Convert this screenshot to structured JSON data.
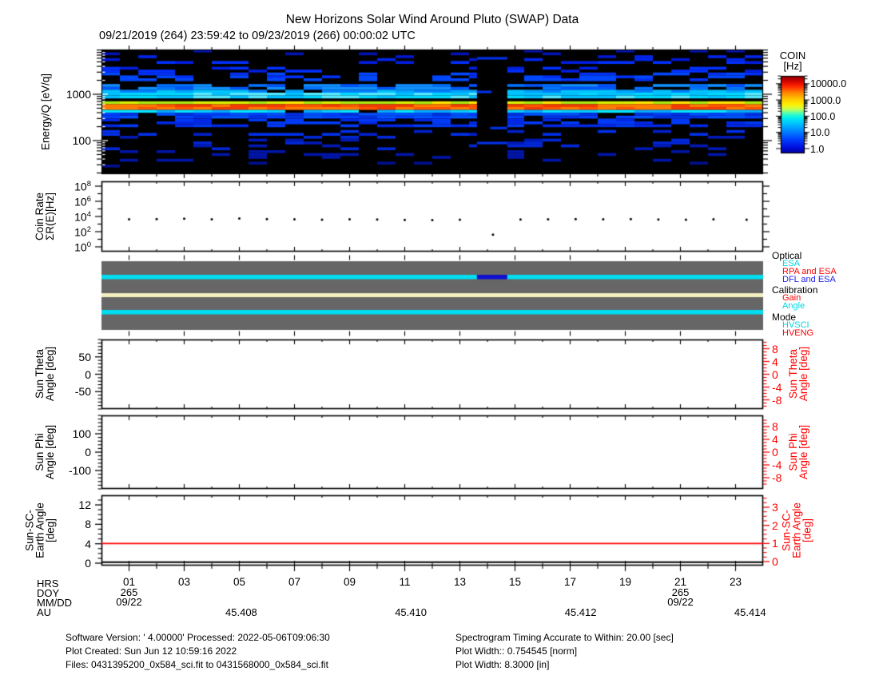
{
  "title": "New Horizons Solar Wind Around Pluto (SWAP) Data",
  "subtitle": "09/21/2019 (264) 23:59:42 to 09/23/2019 (266) 00:00:02 UTC",
  "colorbar": {
    "title_lines": [
      "COIN",
      "[Hz]"
    ],
    "tick_labels": [
      "10000.0",
      "1000.0",
      "100.0",
      "10.0",
      "1.0"
    ],
    "scale": "log"
  },
  "axes": {
    "energy": {
      "lines": [
        "Energy/Q [eV/q]"
      ],
      "ticks": [
        {
          "v": 1000,
          "label": "1000"
        },
        {
          "v": 100,
          "label": "100"
        }
      ]
    },
    "coin": {
      "lines": [
        "Coin Rate",
        "ΣR(E)[Hz]"
      ],
      "ticks": [
        {
          "exp": 8
        },
        {
          "exp": 6
        },
        {
          "exp": 4
        },
        {
          "exp": 2
        },
        {
          "exp": 0
        }
      ]
    },
    "theta_left": {
      "lines": [
        "Sun Theta",
        "Angle [deg]"
      ],
      "majors": [
        50,
        0,
        -50
      ],
      "minor_step": 10,
      "minor_range": [
        -100,
        100
      ]
    },
    "theta_right": {
      "lines": [
        "Sun Theta",
        "Angle [deg]"
      ],
      "majors": [
        8,
        4,
        0,
        -4,
        -8
      ],
      "minor_step": 1,
      "minor_range": [
        -10,
        10
      ],
      "color": "#ff0000"
    },
    "phi_left": {
      "lines": [
        "Sun Phi",
        "Angle [deg]"
      ],
      "majors": [
        100,
        0,
        -100
      ],
      "minor_step": 20,
      "minor_range": [
        -200,
        200
      ]
    },
    "phi_right": {
      "lines": [
        "Sun Phi",
        "Angle [deg]"
      ],
      "majors": [
        8,
        4,
        0,
        -4,
        -8
      ],
      "minor_step": 1,
      "minor_range": [
        -10,
        10
      ],
      "color": "#ff0000"
    },
    "earth_left": {
      "lines": [
        "Sun-SC-",
        "Earth Angle",
        "[deg]"
      ],
      "majors": [
        12,
        8,
        4,
        0
      ],
      "minor_step": 1,
      "minor_range": [
        0,
        13.5
      ]
    },
    "earth_right": {
      "lines": [
        "Sun-SC-",
        "Earth Angle",
        "[deg]"
      ],
      "majors": [
        3,
        2,
        1,
        0
      ],
      "minor_step": 0.25,
      "minor_range": [
        0,
        3.5
      ],
      "color": "#ff0000"
    }
  },
  "status_legend": {
    "groups": [
      {
        "title": "Optical",
        "items": [
          {
            "label": "ESA",
            "color": "#00d5e5"
          },
          {
            "label": "RPA and ESA",
            "color": "#ff0000"
          },
          {
            "label": "DFL and ESA",
            "color": "#2222ee"
          }
        ]
      },
      {
        "title": "Calibration",
        "items": [
          {
            "label": "Gain",
            "color": "#ff0000"
          },
          {
            "label": "Angle",
            "color": "#00d5e5"
          }
        ]
      },
      {
        "title": "Mode",
        "items": [
          {
            "label": "HVSCI",
            "color": "#00d5e5"
          },
          {
            "label": "HVENG",
            "color": "#ff0000"
          }
        ]
      }
    ]
  },
  "xaxis": {
    "row_labels": [
      "HRS",
      "DOY",
      "MM/DD",
      "AU"
    ],
    "hour_ticks": [
      {
        "h": 1,
        "label": "01"
      },
      {
        "h": 3,
        "label": "03"
      },
      {
        "h": 5,
        "label": "05"
      },
      {
        "h": 7,
        "label": "07"
      },
      {
        "h": 9,
        "label": "09"
      },
      {
        "h": 11,
        "label": "11"
      },
      {
        "h": 13,
        "label": "13"
      },
      {
        "h": 15,
        "label": "15"
      },
      {
        "h": 17,
        "label": "17"
      },
      {
        "h": 19,
        "label": "19"
      },
      {
        "h": 21,
        "label": "21"
      },
      {
        "h": 23,
        "label": "23"
      }
    ],
    "doy_entries": [
      {
        "hour": 1,
        "doy": "265",
        "mmdd": "09/22"
      },
      {
        "hour": 21,
        "doy": "265",
        "mmdd": "09/22"
      }
    ],
    "au_entries": [
      {
        "hour": 5.07,
        "label": "45.408"
      },
      {
        "hour": 11.22,
        "label": "45.410"
      },
      {
        "hour": 17.38,
        "label": "45.412"
      },
      {
        "hour": 23.53,
        "label": "45.414"
      }
    ]
  },
  "footer": {
    "left": [
      "Software Version:  ' 4.00000'  Processed: 2022-05-06T09:06:30",
      "Plot Created: Sun Jun 12 10:59:16 2022",
      "Files: 0431395200_0x584_sci.fit to 0431568000_0x584_sci.fit"
    ],
    "right": [
      "Spectrogram Timing Accurate to Within: 20.00 [sec]",
      "Plot Width:: 0.754545 [norm]",
      "Plot Width: 8.3000 [in]"
    ]
  },
  "chart_data": [
    {
      "type": "heatmap",
      "name": "coin-spectrogram",
      "title": "COIN [Hz] energy-time spectrogram",
      "x_axis": "time, hours of DOY 265 (09/22/2019)",
      "x_range": [
        0,
        24
      ],
      "y_axis": "Energy/Q [eV/q]",
      "y_range": [
        19,
        9300
      ],
      "y_scale": "log",
      "z_range": [
        1,
        30000
      ],
      "z_scale": "log",
      "features": [
        "continuous solar-wind proton beam near 500-700 eV/q at ~3000-10000 Hz (orange/red band)",
        "cyan band (~100-300 Hz) just above the beam near 800-1200 eV/q",
        "patchy blue counts (1-30 Hz) over the rest of the energy range",
        "black data gap from hour 13.6 to 14.7 (DFL and ESA calibration)"
      ],
      "data_gap_hours": [
        13.62,
        14.72
      ],
      "seed": 12345,
      "bands": [
        {
          "y0": 0.0,
          "y1": 0.045,
          "d": 0.1,
          "colors": [
            "#0013b4"
          ]
        },
        {
          "y0": 0.045,
          "y1": 0.1,
          "d": 0.22,
          "colors": [
            "#0018d2",
            "#0026ee"
          ]
        },
        {
          "y0": 0.1,
          "y1": 0.175,
          "d": 0.28,
          "colors": [
            "#001ee0",
            "#0030ff"
          ]
        },
        {
          "y0": 0.175,
          "y1": 0.245,
          "d": 0.45,
          "colors": [
            "#0030f5",
            "#0048ff"
          ]
        },
        {
          "y0": 0.245,
          "y1": 0.315,
          "d": 0.72,
          "colors": [
            "#0055ff",
            "#0072ff",
            "#1090ff"
          ]
        },
        {
          "y0": 0.315,
          "y1": 0.355,
          "d": 0.92,
          "colors": [
            "#00a2ff",
            "#00c2ff",
            "#0080ff"
          ]
        },
        {
          "y0": 0.355,
          "y1": 0.395,
          "d": 1.0,
          "colors": [
            "#00d8ff",
            "#55e8ff",
            "#00c0ff"
          ],
          "solid": true
        },
        {
          "y0": 0.395,
          "y1": 0.425,
          "d": 0.75,
          "colors": [
            "#0088ff",
            "#00aaff",
            "#0055ee"
          ]
        },
        {
          "y0": 0.425,
          "y1": 0.448,
          "d": 1.0,
          "colors": [
            "#d8f000",
            "#ffe400",
            "#aae810"
          ],
          "solid": true
        },
        {
          "y0": 0.448,
          "y1": 0.478,
          "d": 1.0,
          "colors": [
            "#ff7a00",
            "#ff5400",
            "#f23c00"
          ],
          "solid": true
        },
        {
          "y0": 0.478,
          "y1": 0.495,
          "d": 1.0,
          "colors": [
            "#ffa200",
            "#ff8400"
          ],
          "solid": true
        },
        {
          "y0": 0.495,
          "y1": 0.512,
          "d": 0.95,
          "colors": [
            "#00ccff",
            "#00e4ff",
            "#00a8ff"
          ],
          "solid": true
        },
        {
          "y0": 0.512,
          "y1": 0.565,
          "d": 0.85,
          "colors": [
            "#0040ff",
            "#0052ff",
            "#0030e4"
          ]
        },
        {
          "y0": 0.565,
          "y1": 0.625,
          "d": 0.5,
          "colors": [
            "#0028e6",
            "#003af7"
          ]
        },
        {
          "y0": 0.625,
          "y1": 0.7,
          "d": 0.3,
          "colors": [
            "#0020cc",
            "#0030ec"
          ]
        },
        {
          "y0": 0.7,
          "y1": 0.8,
          "d": 0.22,
          "colors": [
            "#001ab6",
            "#0028da"
          ]
        },
        {
          "y0": 0.8,
          "y1": 0.9,
          "d": 0.16,
          "colors": [
            "#0016a8"
          ]
        },
        {
          "y0": 0.9,
          "y1": 1.0,
          "d": 0.11,
          "colors": [
            "#001090"
          ]
        }
      ],
      "gap_segments": [
        {
          "f": 0.06,
          "h1": 13.62,
          "h2": 14.72
        },
        {
          "f": 0.33,
          "h1": 13.62,
          "h2": 14.15
        },
        {
          "f": 0.62,
          "h1": 14.1,
          "h2": 14.72
        },
        {
          "f": 0.74,
          "h1": 13.62,
          "h2": 14.72
        }
      ],
      "gap_segment_color": "#0030e6"
    },
    {
      "type": "scatter",
      "name": "coin-rate",
      "ylabel": "Coin Rate ΣR(E)[Hz]",
      "y_scale": "log",
      "x_hours": [
        1.0,
        2.0,
        3.0,
        4.0,
        5.0,
        6.0,
        7.0,
        8.0,
        9.0,
        10.0,
        11.0,
        12.0,
        13.0,
        15.2,
        16.2,
        17.2,
        18.2,
        19.2,
        20.2,
        21.2,
        22.2,
        23.4
      ],
      "y_log10_hz": [
        3.62,
        3.66,
        3.7,
        3.63,
        3.74,
        3.67,
        3.64,
        3.58,
        3.62,
        3.6,
        3.56,
        3.52,
        3.57,
        3.6,
        3.62,
        3.65,
        3.62,
        3.66,
        3.61,
        3.59,
        3.62,
        3.57
      ],
      "outlier": {
        "x_hour": 14.2,
        "y_log10_hz": 1.6
      }
    },
    {
      "type": "timeline",
      "name": "instrument-status",
      "background": "#666666",
      "rows": [
        {
          "name": "Optical",
          "segments": [
            {
              "start_hour": 0,
              "end_hour": 13.62,
              "state": "ESA",
              "color": "#00ddf0"
            },
            {
              "start_hour": 13.62,
              "end_hour": 14.72,
              "state": "DFL and ESA",
              "color": "#1010cf"
            },
            {
              "start_hour": 14.72,
              "end_hour": 24,
              "state": "ESA",
              "color": "#00ddf0"
            }
          ]
        },
        {
          "name": "Calibration",
          "segments": [
            {
              "start_hour": 0,
              "end_hour": 24,
              "state": "none",
              "color": "#f2eebf"
            }
          ]
        },
        {
          "name": "Mode",
          "segments": [
            {
              "start_hour": 0,
              "end_hour": 24,
              "state": "HVSCI",
              "color": "#00ddf0"
            }
          ]
        }
      ]
    },
    {
      "type": "line",
      "name": "sun-theta-angle",
      "series": [],
      "note": "no visible trace in panel"
    },
    {
      "type": "line",
      "name": "sun-phi-angle",
      "series": [],
      "note": "no visible trace in panel"
    },
    {
      "type": "line",
      "name": "sun-sc-earth-angle",
      "series": [
        {
          "name": "Sun-SC-Earth Angle (right axis)",
          "color": "#ff0000",
          "value_deg": 1.0
        },
        {
          "name": "Sun-SC-Earth Angle (left axis)",
          "color": "#000000",
          "value_deg": 0.2
        }
      ]
    }
  ]
}
